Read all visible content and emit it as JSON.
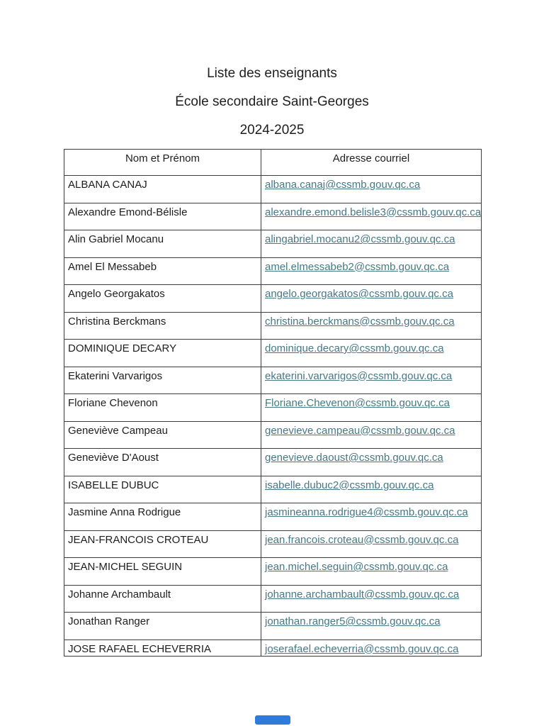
{
  "document": {
    "title": "Liste des enseignants",
    "school": "École secondaire Saint-Georges",
    "school_year": "2024-2025"
  },
  "table": {
    "headers": [
      "Nom et Prénom",
      "Adresse courriel"
    ],
    "rows": [
      {
        "name": "ALBANA CANAJ",
        "email": "albana.canaj@cssmb.gouv.qc.ca"
      },
      {
        "name": "Alexandre Emond-Bélisle",
        "email": "alexandre.emond.belisle3@cssmb.gouv.qc.ca"
      },
      {
        "name": "Alin Gabriel Mocanu",
        "email": "alingabriel.mocanu2@cssmb.gouv.qc.ca"
      },
      {
        "name": "Amel El Messabeb",
        "email": "amel.elmessabeb2@cssmb.gouv.qc.ca"
      },
      {
        "name": "Angelo Georgakatos",
        "email": "angelo.georgakatos@cssmb.gouv.qc.ca"
      },
      {
        "name": "Christina Berckmans",
        "email": "christina.berckmans@cssmb.gouv.qc.ca"
      },
      {
        "name": "DOMINIQUE DECARY",
        "email": "dominique.decary@cssmb.gouv.qc.ca"
      },
      {
        "name": "Ekaterini Varvarigos",
        "email": "ekaterini.varvarigos@cssmb.gouv.qc.ca"
      },
      {
        "name": "Floriane Chevenon",
        "email": "Floriane.Chevenon@cssmb.gouv.qc.ca"
      },
      {
        "name": "Geneviève Campeau",
        "email": "genevieve.campeau@cssmb.gouv.qc.ca"
      },
      {
        "name": "Geneviève D'Aoust",
        "email": "genevieve.daoust@cssmb.gouv.qc.ca"
      },
      {
        "name": "ISABELLE DUBUC",
        "email": "isabelle.dubuc2@cssmb.gouv.qc.ca"
      },
      {
        "name": "Jasmine Anna Rodrigue",
        "email": "jasmineanna.rodrigue4@cssmb.gouv.qc.ca"
      },
      {
        "name": "JEAN-FRANCOIS CROTEAU",
        "email": "jean.francois.croteau@cssmb.gouv.qc.ca"
      },
      {
        "name": "JEAN-MICHEL SEGUIN",
        "email": "jean.michel.seguin@cssmb.gouv.qc.ca"
      },
      {
        "name": "Johanne Archambault",
        "email": "johanne.archambault@cssmb.gouv.qc.ca"
      },
      {
        "name": "Jonathan Ranger",
        "email": "jonathan.ranger5@cssmb.gouv.qc.ca"
      },
      {
        "name": "JOSE RAFAEL ECHEVERRIA",
        "email": "joserafael.echeverria@cssmb.gouv.qc.ca"
      }
    ]
  },
  "colors": {
    "link": "#467886",
    "text": "#1e1e1e",
    "border": "#3c3c3c",
    "indicator": "#2e7bd9"
  }
}
